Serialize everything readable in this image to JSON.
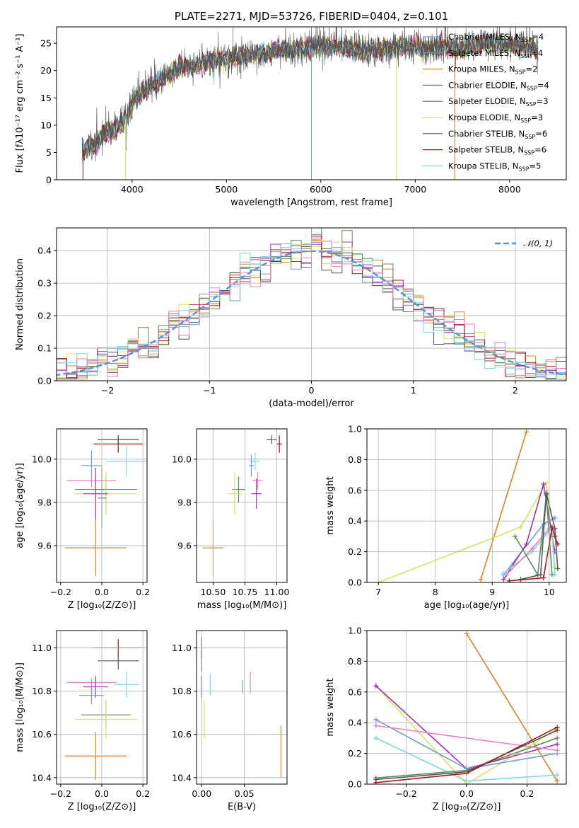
{
  "colors": {
    "Chabrier MILES": "#6b9bd8",
    "Salpeter MILES": "#9a9a9a",
    "Kroupa MILES": "#e0801f",
    "Chabrier ELODIE": "#5b8a5b",
    "Salpeter ELODIE": "#a033b0",
    "Kroupa ELODIE": "#cfe660",
    "Chabrier STELIB": "#555555",
    "Salpeter STELIB": "#a01818",
    "Kroupa STELIB": "#7fd8e0",
    "extra_pink": "#e880c0",
    "normal_dash": "#5b8fd8"
  },
  "chart_data": [
    {
      "id": "spectrum",
      "type": "line",
      "title": "PLATE=2271, MJD=53726, FIBERID=0404, z=0.101",
      "xlabel": "wavelength [Angstrom, rest frame]",
      "ylabel": "Flux [fλ10⁻¹⁷ erg cm⁻² s⁻¹ A⁻¹]",
      "xlim": [
        3200,
        8600
      ],
      "ylim": [
        0,
        28
      ],
      "xticks": [
        "4000",
        "5000",
        "6000",
        "7000",
        "8000"
      ],
      "yticks": [
        "0",
        "5",
        "10",
        "15",
        "20",
        "25"
      ],
      "grid": false,
      "continuum": [
        [
          3470,
          5.5
        ],
        [
          3600,
          6.5
        ],
        [
          3700,
          8.5
        ],
        [
          3850,
          9.5
        ],
        [
          3950,
          11.5
        ],
        [
          4000,
          14
        ],
        [
          4100,
          16
        ],
        [
          4300,
          18.5
        ],
        [
          4500,
          20.5
        ],
        [
          4700,
          21
        ],
        [
          4900,
          22
        ],
        [
          5100,
          22.5
        ],
        [
          5300,
          23
        ],
        [
          5500,
          23.5
        ],
        [
          5700,
          24
        ],
        [
          5900,
          24
        ],
        [
          6100,
          24.5
        ],
        [
          6300,
          24
        ],
        [
          6500,
          23.5
        ],
        [
          6700,
          24
        ],
        [
          6900,
          24.5
        ],
        [
          7100,
          24
        ],
        [
          7300,
          24.5
        ],
        [
          7500,
          24
        ],
        [
          7700,
          25
        ],
        [
          7900,
          25
        ],
        [
          8100,
          24.5
        ],
        [
          8300,
          24
        ]
      ],
      "legend_position": "upper-right",
      "legend": [
        {
          "series": "Chabrier MILES",
          "label": "Chabrier MILES, N",
          "sub": "SSP",
          "tail": "=4"
        },
        {
          "series": "Salpeter MILES",
          "label": "Salpeter MILES, N",
          "sub": "SSP",
          "tail": "=4"
        },
        {
          "series": "Kroupa MILES",
          "label": "Kroupa MILES, N",
          "sub": "SSP",
          "tail": "=2"
        },
        {
          "series": "Chabrier ELODIE",
          "label": "Chabrier ELODIE, N",
          "sub": "SSP",
          "tail": "=4"
        },
        {
          "series": "Salpeter ELODIE",
          "label": "Salpeter ELODIE, N",
          "sub": "SSP",
          "tail": "=3"
        },
        {
          "series": "Kroupa ELODIE",
          "label": "Kroupa ELODIE, N",
          "sub": "SSP",
          "tail": "=3"
        },
        {
          "series": "Chabrier STELIB",
          "label": "Chabrier STELIB, N",
          "sub": "SSP",
          "tail": "=6"
        },
        {
          "series": "Salpeter STELIB",
          "label": "Salpeter STELIB, N",
          "sub": "SSP",
          "tail": "=6"
        },
        {
          "series": "Kroupa STELIB",
          "label": "Kroupa STELIB, N",
          "sub": "SSP",
          "tail": "=5"
        }
      ]
    },
    {
      "id": "residuals",
      "type": "histogram",
      "xlabel": "(data-model)/error",
      "ylabel": "Normed distribution",
      "xlim": [
        -2.5,
        2.5
      ],
      "ylim": [
        0,
        0.47
      ],
      "xticks": [
        "−2",
        "−1",
        "0",
        "1",
        "2"
      ],
      "yticks": [
        "0.0",
        "0.1",
        "0.2",
        "0.3",
        "0.4"
      ],
      "grid": true,
      "bin_width": 0.1,
      "legend": {
        "label": "𝒩(0, 1)",
        "position": "upper-right"
      }
    },
    {
      "id": "age_vs_Z",
      "type": "scatter",
      "xlabel": "Z [log₁₀(Z/Z⊙)]",
      "ylabel": "age  [log₁₀(age/yr)]",
      "xlim": [
        -0.22,
        0.22
      ],
      "ylim": [
        9.43,
        10.14
      ],
      "xticks": [
        -0.2,
        0.0,
        0.2
      ],
      "xtick_labels": [
        "−0.2",
        "0.0",
        "0.2"
      ],
      "yticks": [
        9.6,
        9.8,
        10.0
      ],
      "ytick_labels": [
        "9.6",
        "9.8",
        "10.0"
      ],
      "grid": true,
      "points": [
        {
          "series": "Chabrier MILES",
          "x": -0.05,
          "y": 9.97,
          "dx": 0.05,
          "dy": 0.07
        },
        {
          "series": "Salpeter STELIB",
          "x": 0.08,
          "y": 10.07,
          "dx": 0.12,
          "dy": 0.04
        },
        {
          "series": "Chabrier STELIB",
          "x": 0.08,
          "y": 10.09,
          "dx": 0.1,
          "dy": 0.02
        },
        {
          "series": "Kroupa STELIB",
          "x": 0.12,
          "y": 9.99,
          "dx": 0.1,
          "dy": 0.07
        },
        {
          "series": "extra_pink",
          "x": -0.05,
          "y": 9.9,
          "dx": 0.12,
          "dy": 0.03
        },
        {
          "series": "Chabrier ELODIE",
          "x": 0.02,
          "y": 9.86,
          "dx": 0.15,
          "dy": 0.06
        },
        {
          "series": "Kroupa ELODIE",
          "x": 0.02,
          "y": 9.84,
          "dx": 0.15,
          "dy": 0.1
        },
        {
          "series": "Salpeter ELODIE",
          "x": -0.03,
          "y": 9.84,
          "dx": 0.06,
          "dy": 0.12
        },
        {
          "series": "Chabrier ELODIE",
          "x": 0.0,
          "y": 9.82,
          "dx": 0.02,
          "dy": 0.14
        },
        {
          "series": "Kroupa MILES",
          "x": -0.03,
          "y": 9.59,
          "dx": 0.15,
          "dy": 0.13
        }
      ]
    },
    {
      "id": "age_vs_mass",
      "type": "scatter",
      "xlabel": "mass [log₁₀(M/M⊙)]",
      "ylabel": "",
      "xlim": [
        10.37,
        11.08
      ],
      "ylim": [
        9.43,
        10.14
      ],
      "xticks": [
        10.5,
        10.75,
        11.0
      ],
      "xtick_labels": [
        "10.50",
        "10.75",
        "11.00"
      ],
      "yticks": [
        9.6,
        9.8,
        10.0
      ],
      "ytick_labels": [
        "9.6",
        "9.8",
        "10.0"
      ],
      "grid": true,
      "points": [
        {
          "series": "Salpeter STELIB",
          "x": 11.02,
          "y": 10.07,
          "dx": 0.02,
          "dy": 0.04
        },
        {
          "series": "Chabrier STELIB",
          "x": 10.96,
          "y": 10.09,
          "dx": 0.04,
          "dy": 0.02
        },
        {
          "series": "Kroupa STELIB",
          "x": 10.83,
          "y": 9.99,
          "dx": 0.04,
          "dy": 0.04
        },
        {
          "series": "Chabrier MILES",
          "x": 10.8,
          "y": 9.97,
          "dx": 0.02,
          "dy": 0.05
        },
        {
          "series": "extra_pink",
          "x": 10.85,
          "y": 9.9,
          "dx": 0.04,
          "dy": 0.04
        },
        {
          "series": "Chabrier ELODIE",
          "x": 10.7,
          "y": 9.86,
          "dx": 0.05,
          "dy": 0.06
        },
        {
          "series": "Kroupa ELODIE",
          "x": 10.67,
          "y": 9.84,
          "dx": 0.05,
          "dy": 0.1
        },
        {
          "series": "Salpeter ELODIE",
          "x": 10.84,
          "y": 9.84,
          "dx": 0.04,
          "dy": 0.07
        },
        {
          "series": "Kroupa MILES",
          "x": 10.5,
          "y": 9.59,
          "dx": 0.08,
          "dy": 0.13
        }
      ]
    },
    {
      "id": "weight_vs_age",
      "type": "line",
      "xlabel": "age  [log₁₀(age/yr)]",
      "ylabel": "mass weight",
      "xlim": [
        6.8,
        10.3
      ],
      "ylim": [
        0,
        1.0
      ],
      "xticks": [
        7,
        8,
        9,
        10
      ],
      "xtick_labels": [
        "7",
        "8",
        "9",
        "10"
      ],
      "yticks": [
        0.0,
        0.2,
        0.4,
        0.6,
        0.8,
        1.0
      ],
      "ytick_labels": [
        "0.0",
        "0.2",
        "0.4",
        "0.6",
        "0.8",
        "1.0"
      ],
      "grid": true,
      "series": [
        {
          "name": "Kroupa MILES",
          "x": [
            8.8,
            9.6
          ],
          "y": [
            0.02,
            0.98
          ]
        },
        {
          "name": "Kroupa ELODIE",
          "x": [
            7.0,
            9.5,
            9.95,
            10.1
          ],
          "y": [
            0.0,
            0.36,
            0.65,
            0.1
          ]
        },
        {
          "name": "Chabrier MILES",
          "x": [
            9.2,
            9.9,
            10.1
          ],
          "y": [
            0.05,
            0.38,
            0.42
          ]
        },
        {
          "name": "Salpeter ELODIE",
          "x": [
            9.2,
            9.6,
            9.9,
            10.1
          ],
          "y": [
            0.02,
            0.25,
            0.64,
            0.2
          ]
        },
        {
          "name": "Kroupa STELIB",
          "x": [
            9.2,
            9.7,
            10.05,
            10.1
          ],
          "y": [
            0.06,
            0.2,
            0.36,
            0.05
          ]
        },
        {
          "name": "extra_pink",
          "x": [
            9.25,
            9.7,
            10.0
          ],
          "y": [
            0.05,
            0.22,
            0.35
          ]
        },
        {
          "name": "Chabrier ELODIE",
          "x": [
            9.4,
            9.8,
            9.95,
            10.05
          ],
          "y": [
            0.3,
            0.05,
            0.57,
            0.05
          ]
        },
        {
          "name": "Chabrier STELIB",
          "x": [
            9.5,
            9.85,
            9.95,
            10.1,
            10.15
          ],
          "y": [
            0.02,
            0.05,
            0.58,
            0.35,
            0.09
          ]
        },
        {
          "name": "Salpeter STELIB",
          "x": [
            9.3,
            9.9,
            10.05,
            10.1,
            10.15
          ],
          "y": [
            0.01,
            0.03,
            0.36,
            0.3,
            0.25
          ]
        }
      ]
    },
    {
      "id": "mass_vs_Z",
      "type": "scatter",
      "xlabel": "Z [log₁₀(Z/Z⊙)]",
      "ylabel": "mass [log₁₀(M/M⊙)]",
      "xlim": [
        -0.22,
        0.22
      ],
      "ylim": [
        10.37,
        11.08
      ],
      "xticks": [
        -0.2,
        0.0,
        0.2
      ],
      "xtick_labels": [
        "−0.2",
        "0.0",
        "0.2"
      ],
      "yticks": [
        10.4,
        10.6,
        10.8,
        11.0
      ],
      "ytick_labels": [
        "10.4",
        "10.6",
        "10.8",
        "11.0"
      ],
      "grid": true,
      "points": [
        {
          "series": "Salpeter STELIB",
          "x": 0.08,
          "y": 11.0,
          "dx": 0.12,
          "dy": 0.04
        },
        {
          "series": "Chabrier STELIB",
          "x": 0.08,
          "y": 10.94,
          "dx": 0.1,
          "dy": 0.04
        },
        {
          "series": "Kroupa STELIB",
          "x": 0.12,
          "y": 10.83,
          "dx": 0.06,
          "dy": 0.06
        },
        {
          "series": "extra_pink",
          "x": -0.05,
          "y": 10.84,
          "dx": 0.12,
          "dy": 0.02
        },
        {
          "series": "Salpeter ELODIE",
          "x": -0.03,
          "y": 10.82,
          "dx": 0.06,
          "dy": 0.05
        },
        {
          "series": "Chabrier MILES",
          "x": -0.05,
          "y": 10.78,
          "dx": 0.06,
          "dy": 0.04
        },
        {
          "series": "Chabrier ELODIE",
          "x": 0.02,
          "y": 10.69,
          "dx": 0.12,
          "dy": 0.06
        },
        {
          "series": "Kroupa ELODIE",
          "x": 0.02,
          "y": 10.67,
          "dx": 0.15,
          "dy": 0.09
        },
        {
          "series": "Kroupa MILES",
          "x": -0.03,
          "y": 10.5,
          "dx": 0.15,
          "dy": 0.11
        }
      ]
    },
    {
      "id": "mass_vs_ebv",
      "type": "scatter",
      "xlabel": "E(B-V)",
      "ylabel": "",
      "xlim": [
        -0.006,
        0.1
      ],
      "ylim": [
        10.37,
        11.08
      ],
      "xticks": [
        0.0,
        0.05
      ],
      "xtick_labels": [
        "0.00",
        "0.05"
      ],
      "yticks": [
        10.4,
        10.6,
        10.8,
        11.0
      ],
      "ytick_labels": [
        "10.4",
        "10.6",
        "10.8",
        "11.0"
      ],
      "grid": true,
      "points": [
        {
          "series": "Salpeter STELIB",
          "x": 0.0,
          "y": 11.0,
          "dx": 0,
          "dy": 0.05
        },
        {
          "series": "Chabrier STELIB",
          "x": 0.0,
          "y": 10.94,
          "dx": 0,
          "dy": 0.05
        },
        {
          "series": "Salpeter ELODIE",
          "x": 0.0,
          "y": 10.82,
          "dx": 0,
          "dy": 0.05
        },
        {
          "series": "Kroupa STELIB",
          "x": 0.01,
          "y": 10.83,
          "dx": 0,
          "dy": 0.05
        },
        {
          "series": "Chabrier MILES",
          "x": 0.048,
          "y": 10.82,
          "dx": 0,
          "dy": 0.03
        },
        {
          "series": "extra_pink",
          "x": 0.057,
          "y": 10.84,
          "dx": 0,
          "dy": 0.05
        },
        {
          "series": "Kroupa ELODIE",
          "x": 0.003,
          "y": 10.67,
          "dx": 0,
          "dy": 0.09
        },
        {
          "series": "Kroupa MILES",
          "x": 0.093,
          "y": 10.52,
          "dx": 0,
          "dy": 0.12
        }
      ]
    },
    {
      "id": "weight_vs_Z",
      "type": "line",
      "xlabel": "Z [log₁₀(Z/Z⊙)]",
      "ylabel": "mass weight",
      "xlim": [
        -0.33,
        0.33
      ],
      "ylim": [
        0,
        1.0
      ],
      "xticks": [
        -0.2,
        0.0,
        0.2
      ],
      "xtick_labels": [
        "−0.2",
        "0.0",
        "0.2"
      ],
      "yticks": [
        0.0,
        0.2,
        0.4,
        0.6,
        0.8,
        1.0
      ],
      "ytick_labels": [
        "0.0",
        "0.2",
        "0.4",
        "0.6",
        "0.8",
        "1.0"
      ],
      "grid": true,
      "series": [
        {
          "name": "Kroupa MILES",
          "x": [
            0.0,
            0.3
          ],
          "y": [
            0.98,
            0.02
          ]
        },
        {
          "name": "Kroupa ELODIE",
          "x": [
            -0.3,
            0.0,
            0.3
          ],
          "y": [
            0.64,
            0.0,
            0.36
          ]
        },
        {
          "name": "Salpeter ELODIE",
          "x": [
            -0.3,
            0.0,
            0.3
          ],
          "y": [
            0.64,
            0.1,
            0.26
          ]
        },
        {
          "name": "Chabrier MILES",
          "x": [
            -0.3,
            0.0,
            0.3
          ],
          "y": [
            0.42,
            0.1,
            0.2
          ]
        },
        {
          "name": "extra_pink",
          "x": [
            -0.3,
            0.3
          ],
          "y": [
            0.38,
            0.22
          ]
        },
        {
          "name": "Kroupa STELIB",
          "x": [
            -0.3,
            0.0,
            0.3
          ],
          "y": [
            0.3,
            0.02,
            0.06
          ]
        },
        {
          "name": "Chabrier ELODIE",
          "x": [
            -0.3,
            0.0,
            0.3
          ],
          "y": [
            0.04,
            0.09,
            0.3
          ]
        },
        {
          "name": "Chabrier STELIB",
          "x": [
            -0.3,
            0.0,
            0.3
          ],
          "y": [
            0.03,
            0.08,
            0.35
          ]
        },
        {
          "name": "Salpeter STELIB",
          "x": [
            -0.3,
            0.0,
            0.3
          ],
          "y": [
            0.01,
            0.07,
            0.37
          ]
        }
      ]
    }
  ]
}
